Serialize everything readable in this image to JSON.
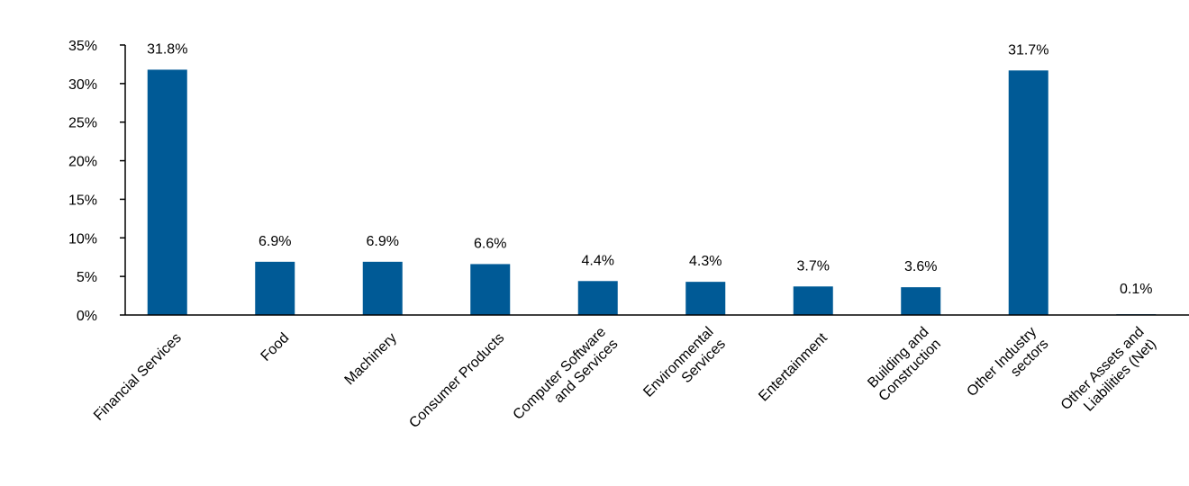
{
  "chart_data": {
    "type": "bar",
    "title": "",
    "xlabel": "",
    "ylabel": "",
    "categories": [
      [
        "Financial Services"
      ],
      [
        "Food"
      ],
      [
        "Machinery"
      ],
      [
        "Consumer Products"
      ],
      [
        "Computer Software",
        "and Services"
      ],
      [
        "Environmental",
        "Services"
      ],
      [
        "Entertainment"
      ],
      [
        "Building and",
        "Construction"
      ],
      [
        "Other Industry",
        "sectors"
      ],
      [
        "Other Assets and",
        "Liabilities (Net)"
      ]
    ],
    "values": [
      31.8,
      6.9,
      6.9,
      6.6,
      4.4,
      4.3,
      3.7,
      3.6,
      31.7,
      0.1
    ],
    "data_labels": [
      "31.8%",
      "6.9%",
      "6.9%",
      "6.6%",
      "4.4%",
      "4.3%",
      "3.7%",
      "3.6%",
      "31.7%",
      "0.1%"
    ],
    "ylim": [
      0,
      35
    ],
    "yticks": [
      0,
      5,
      10,
      15,
      20,
      25,
      30,
      35
    ],
    "ytick_labels": [
      "0%",
      "5%",
      "10%",
      "15%",
      "20%",
      "25%",
      "30%",
      "35%"
    ],
    "bar_color": "#005A96",
    "axis_color": "#000000",
    "grid": false,
    "legend": "none"
  }
}
